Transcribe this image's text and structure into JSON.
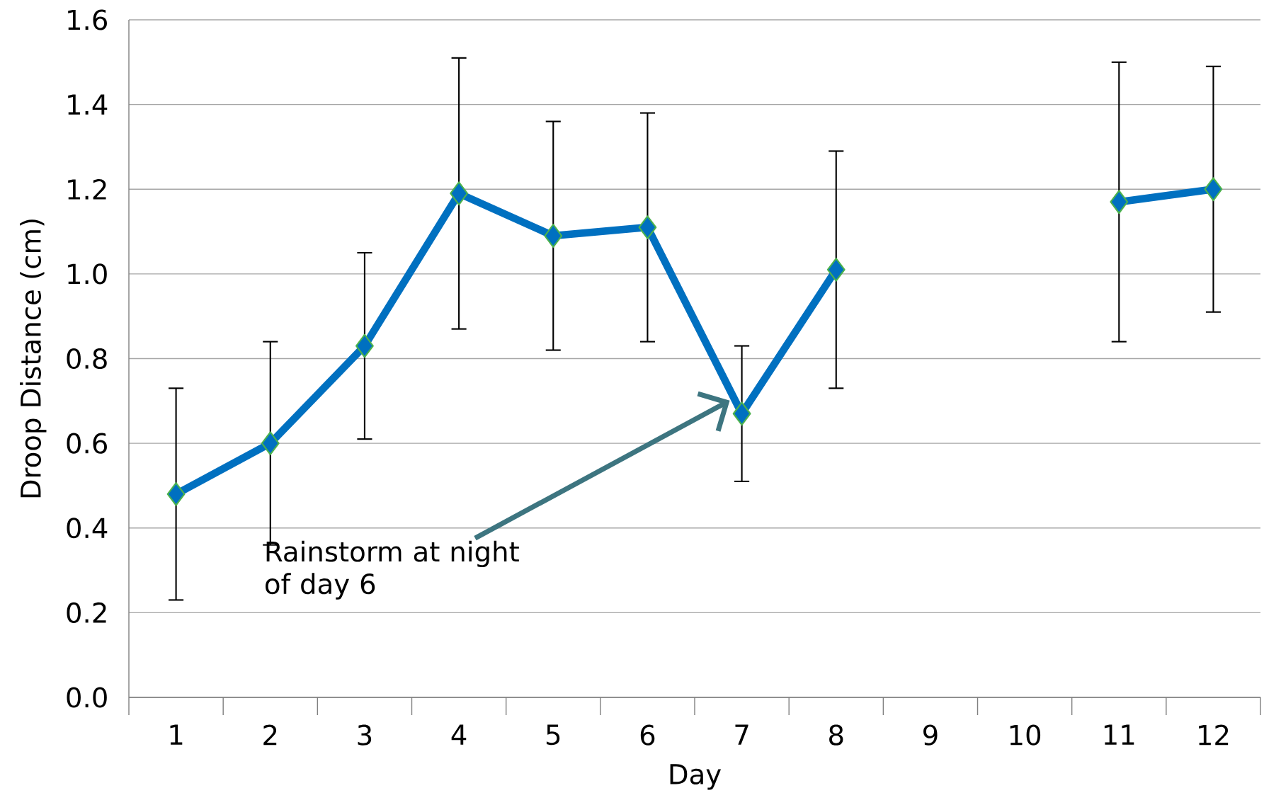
{
  "chart_data": {
    "type": "line",
    "xlabel": "Day",
    "ylabel": "Droop Distance (cm)",
    "categories": [
      "1",
      "2",
      "3",
      "4",
      "5",
      "6",
      "7",
      "8",
      "9",
      "10",
      "11",
      "12"
    ],
    "series": [
      {
        "color": "#0070c0",
        "values": [
          0.48,
          0.6,
          0.83,
          1.19,
          1.09,
          1.11,
          0.67,
          1.01,
          null,
          null,
          1.17,
          1.2
        ],
        "errors": [
          0.25,
          0.24,
          0.22,
          0.32,
          0.27,
          0.27,
          0.16,
          0.28,
          null,
          null,
          0.33,
          0.29
        ]
      }
    ],
    "ylim": [
      0,
      1.6
    ],
    "yticks": [
      {
        "value": 0,
        "label": "0.0"
      },
      {
        "value": 0.2,
        "label": "0.2"
      },
      {
        "value": 0.4,
        "label": "0.4"
      },
      {
        "value": 0.6,
        "label": "0.6"
      },
      {
        "value": 0.8,
        "label": "0.8"
      },
      {
        "value": 1.0,
        "label": "1.0"
      },
      {
        "value": 1.2,
        "label": "1.2"
      },
      {
        "value": 1.4,
        "label": "1.4"
      },
      {
        "value": 1.6,
        "label": "1.6"
      }
    ],
    "grid": "y",
    "marker": "diamond",
    "line_style": "solid",
    "annotations": [
      "Rainstorm at night of day 6"
    ]
  }
}
